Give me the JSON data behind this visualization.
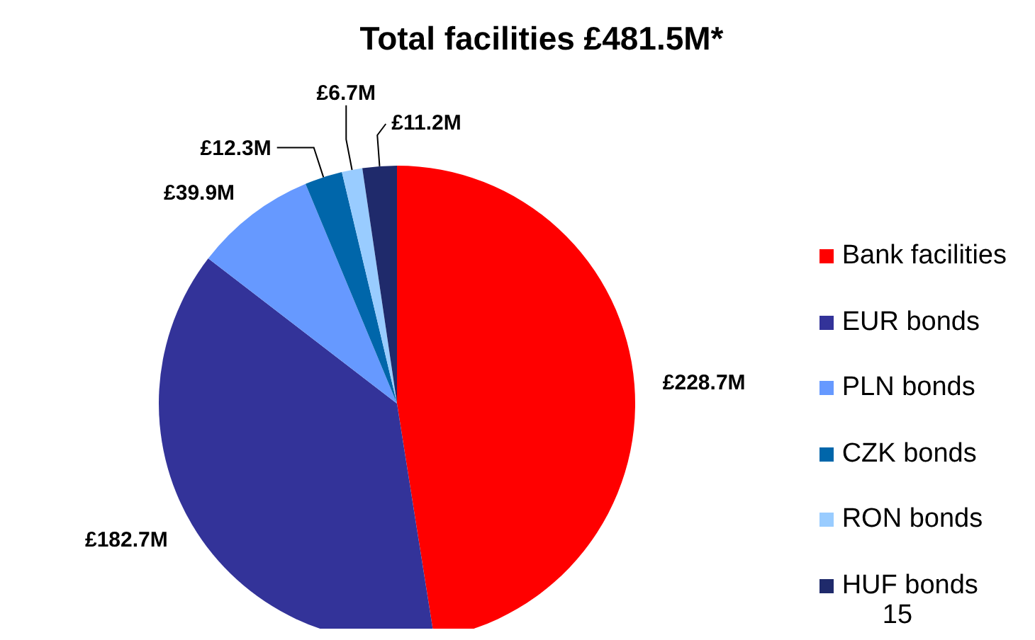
{
  "chart_data": {
    "type": "pie",
    "title": "Total facilities £481.5M*",
    "categories": [
      "Bank facilities",
      "EUR bonds",
      "PLN bonds",
      "CZK bonds",
      "RON bonds",
      "HUF bonds"
    ],
    "values": [
      228.7,
      182.7,
      39.9,
      12.3,
      6.7,
      11.2
    ],
    "colors": [
      "#ff0000",
      "#333399",
      "#6699ff",
      "#0066aa",
      "#99ccff",
      "#1f2a6b"
    ],
    "value_labels": [
      "£228.7M",
      "£182.7M",
      "£39.9M",
      "£12.3M",
      "£6.7M",
      "£11.2M"
    ],
    "legend": "right",
    "annotations": [
      "15"
    ]
  }
}
